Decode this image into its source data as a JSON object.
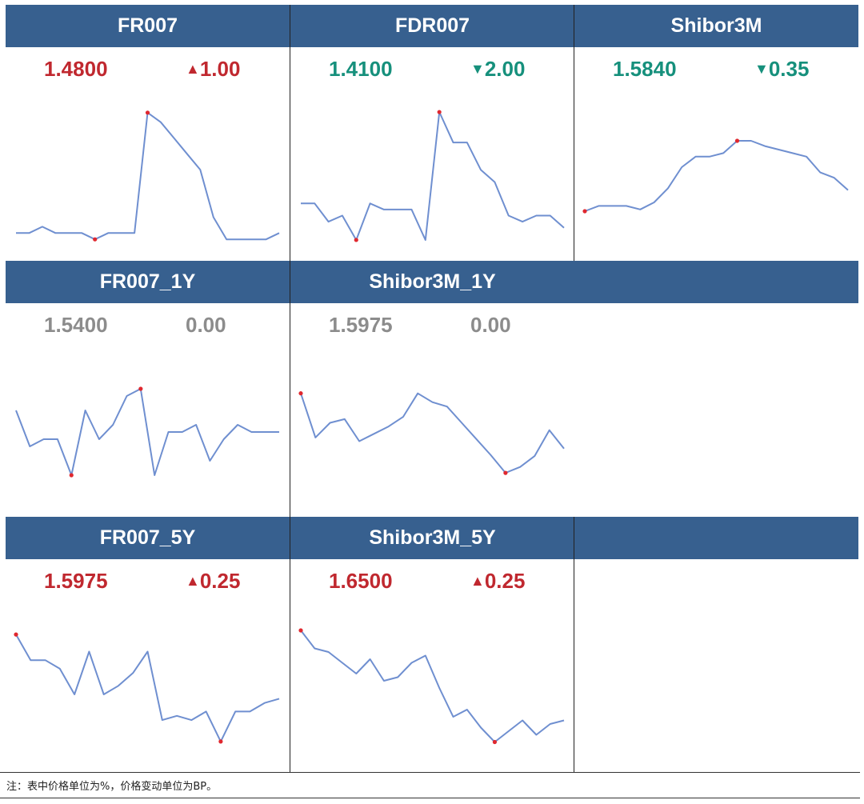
{
  "colors": {
    "header_bg": "#37608f",
    "up": "#c0282f",
    "down": "#16907c",
    "flat": "#8c8c8c",
    "line": "#6f8fd0",
    "marker": "#e0282f"
  },
  "chart_data": [
    {
      "type": "line",
      "title": "FR007",
      "price": "1.4800",
      "change": "1.00",
      "direction": "up",
      "values": [
        1.4,
        1.4,
        1.42,
        1.4,
        1.4,
        1.4,
        1.38,
        1.4,
        1.4,
        1.4,
        1.78,
        1.75,
        1.7,
        1.65,
        1.6,
        1.45,
        1.38,
        1.38,
        1.38,
        1.38,
        1.4
      ],
      "ylim": [
        1.33,
        1.83
      ],
      "markers": [
        6,
        10
      ]
    },
    {
      "type": "line",
      "title": "FDR007",
      "price": "1.4100",
      "change": "2.00",
      "direction": "down",
      "values": [
        1.45,
        1.45,
        1.39,
        1.41,
        1.33,
        1.45,
        1.43,
        1.43,
        1.43,
        1.33,
        1.75,
        1.65,
        1.65,
        1.56,
        1.52,
        1.41,
        1.39,
        1.41,
        1.41,
        1.37
      ],
      "ylim": [
        1.28,
        1.8
      ],
      "markers": [
        4,
        10
      ]
    },
    {
      "type": "line",
      "title": "Shibor3M",
      "price": "1.5840",
      "change": "0.35",
      "direction": "down",
      "values": [
        1.545,
        1.548,
        1.548,
        1.548,
        1.546,
        1.55,
        1.558,
        1.57,
        1.576,
        1.576,
        1.578,
        1.585,
        1.585,
        1.582,
        1.58,
        1.578,
        1.576,
        1.567,
        1.564,
        1.557
      ],
      "ylim": [
        1.52,
        1.61
      ],
      "markers": [
        0,
        11
      ]
    },
    {
      "type": "line",
      "title": "FR007_1Y",
      "price": "1.5400",
      "change": "0.00",
      "direction": "flat",
      "values": [
        1.57,
        1.52,
        1.53,
        1.53,
        1.48,
        1.57,
        1.53,
        1.55,
        1.59,
        1.6,
        1.48,
        1.54,
        1.54,
        1.55,
        1.5,
        1.53,
        1.55,
        1.54,
        1.54,
        1.54
      ],
      "ylim": [
        1.43,
        1.65
      ],
      "markers": [
        4,
        9
      ]
    },
    {
      "type": "line",
      "title": "Shibor3M_1Y",
      "price": "1.5975",
      "change": "0.00",
      "direction": "flat",
      "values": [
        1.66,
        1.6,
        1.62,
        1.625,
        1.595,
        1.605,
        1.615,
        1.628,
        1.66,
        1.648,
        1.642,
        1.62,
        1.598,
        1.576,
        1.552,
        1.56,
        1.575,
        1.61,
        1.585
      ],
      "ylim": [
        1.5,
        1.715
      ],
      "markers": [
        0,
        14
      ]
    },
    {
      "type": "line",
      "title": "FR007_5Y",
      "price": "1.5975",
      "change": "0.25",
      "direction": "up",
      "values": [
        1.8,
        1.74,
        1.74,
        1.72,
        1.66,
        1.76,
        1.66,
        1.68,
        1.71,
        1.76,
        1.6,
        1.61,
        1.6,
        1.62,
        1.55,
        1.62,
        1.62,
        1.64,
        1.65
      ],
      "ylim": [
        1.49,
        1.86
      ],
      "markers": [
        0,
        14
      ]
    },
    {
      "type": "line",
      "title": "Shibor3M_5Y",
      "price": "1.6500",
      "change": "0.25",
      "direction": "up",
      "values": [
        1.86,
        1.81,
        1.8,
        1.77,
        1.74,
        1.78,
        1.72,
        1.73,
        1.77,
        1.79,
        1.7,
        1.62,
        1.64,
        1.59,
        1.55,
        1.58,
        1.61,
        1.57,
        1.6,
        1.61
      ],
      "ylim": [
        1.48,
        1.92
      ],
      "markers": [
        0,
        14
      ]
    }
  ],
  "note": "注：表中价格单位为%，价格变动单位为BP。"
}
